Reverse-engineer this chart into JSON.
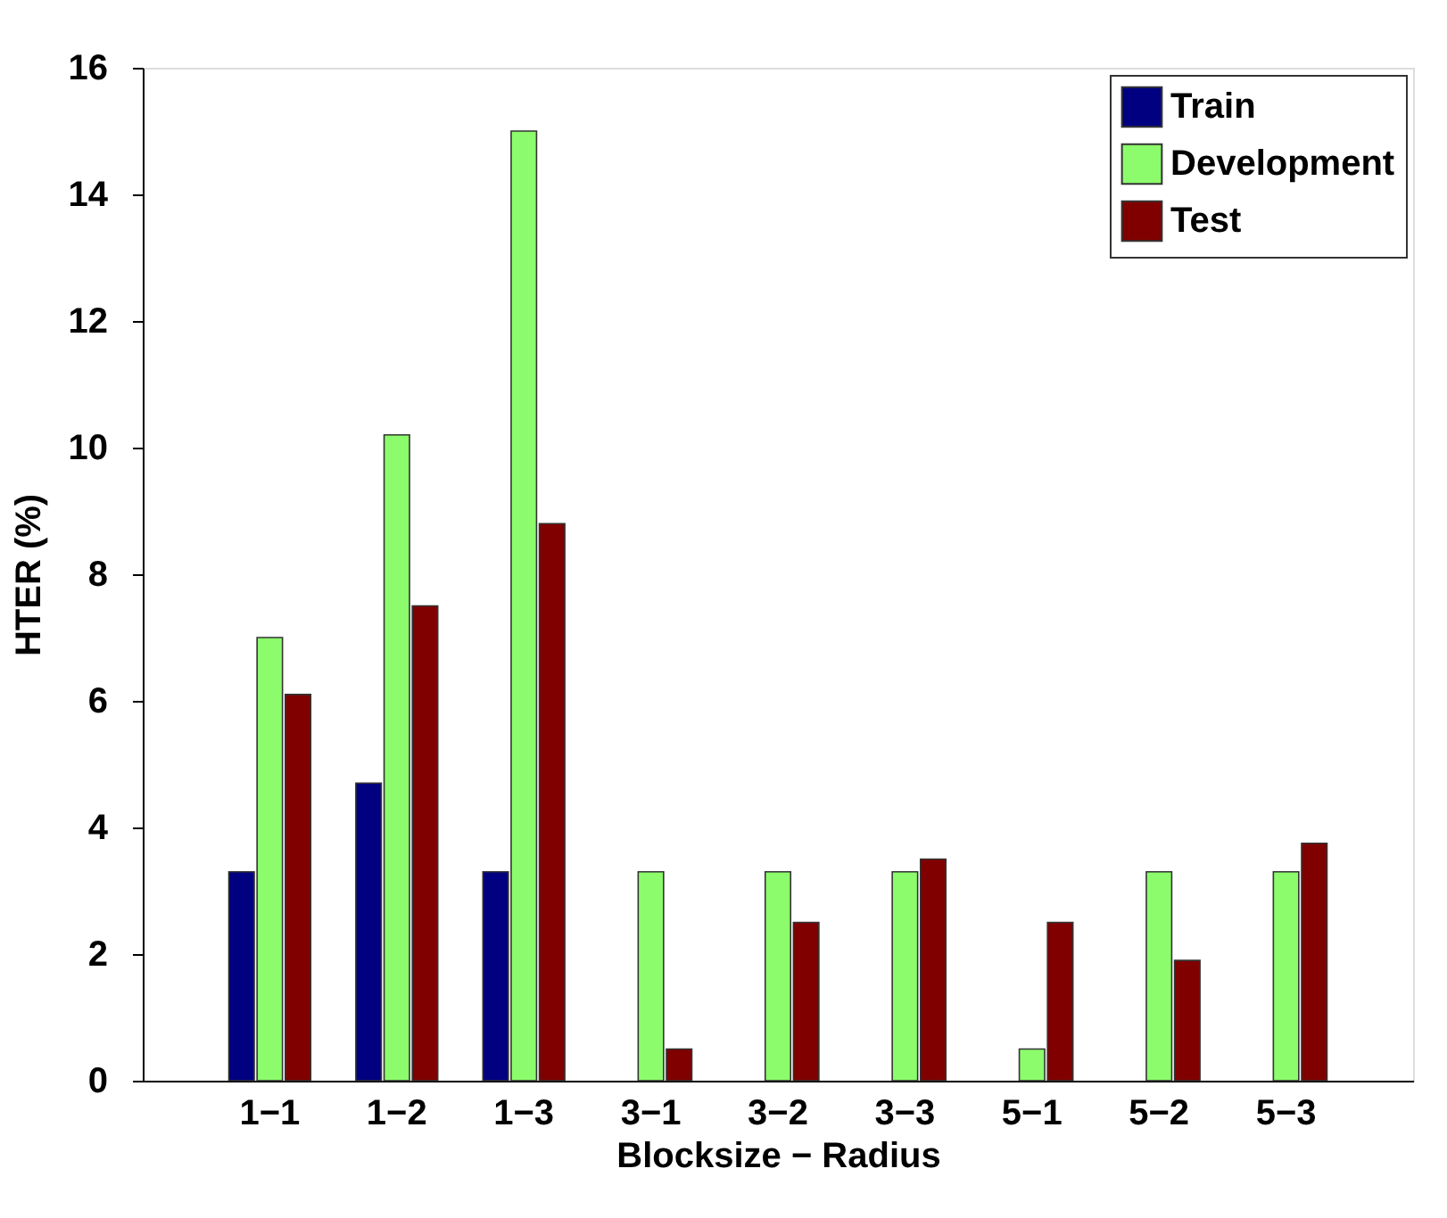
{
  "chart_data": {
    "type": "bar",
    "xlabel": "Blocksize − Radius",
    "ylabel": "HTER (%)",
    "categories": [
      "1−1",
      "1−2",
      "1−3",
      "3−1",
      "3−2",
      "3−3",
      "5−1",
      "5−2",
      "5−3"
    ],
    "series": [
      {
        "name": "Train",
        "color": "#000080",
        "values": [
          3.3,
          4.7,
          3.3,
          null,
          null,
          null,
          null,
          null,
          null
        ]
      },
      {
        "name": "Development",
        "color": "#8cfc6c",
        "values": [
          7,
          10.2,
          15,
          3.3,
          3.3,
          3.3,
          0.5,
          3.3,
          3.3
        ]
      },
      {
        "name": "Test",
        "color": "#800000",
        "values": [
          6.1,
          7.5,
          8.8,
          0.5,
          2.5,
          3.5,
          2.5,
          1.9,
          3.75
        ]
      }
    ],
    "ylim": [
      0,
      16
    ],
    "yticks": [
      0,
      2,
      4,
      6,
      8,
      10,
      12,
      14,
      16
    ],
    "grid": false,
    "legend": "top right"
  }
}
